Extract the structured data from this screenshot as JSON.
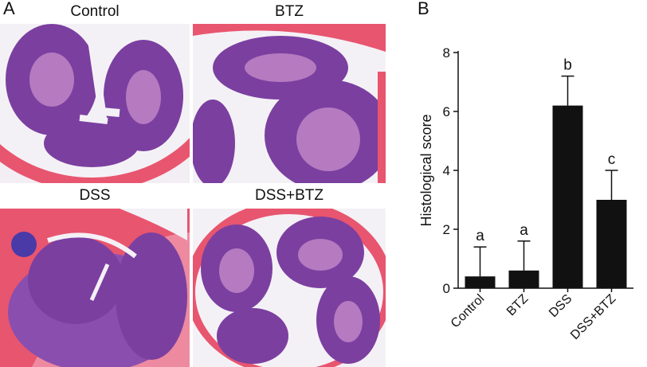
{
  "panels": {
    "a_letter": "A",
    "b_letter": "B"
  },
  "micrographs": [
    {
      "label": "Control"
    },
    {
      "label": "BTZ"
    },
    {
      "label": "DSS"
    },
    {
      "label": "DSS+BTZ"
    }
  ],
  "colors": {
    "bar": "#111111",
    "tissue_pink": "#e8556f",
    "tissue_purple": "#7b3fa0",
    "lumen": "#f4f1f6"
  },
  "chart_data": {
    "type": "bar",
    "categories": [
      "Control",
      "BTZ",
      "DSS",
      "DSS+BTZ"
    ],
    "values": [
      0.4,
      0.6,
      6.2,
      3.0
    ],
    "errors": [
      1.0,
      1.0,
      1.0,
      1.0
    ],
    "significance": [
      "a",
      "a",
      "b",
      "c"
    ],
    "ylabel": "Histological score",
    "xlabel": "",
    "ylim": [
      0,
      8
    ],
    "yticks": [
      "0",
      "2",
      "4",
      "6",
      "8"
    ],
    "grid": false
  }
}
